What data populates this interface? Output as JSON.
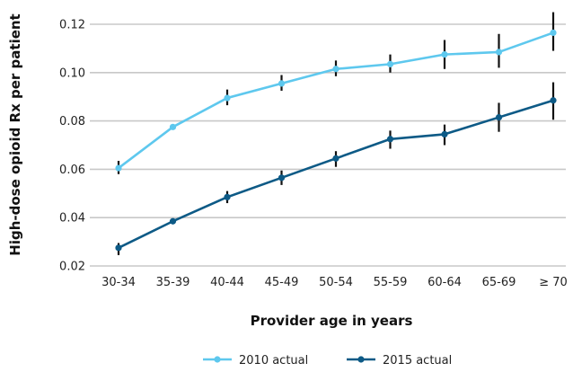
{
  "chart_data": {
    "type": "line",
    "title": "",
    "xlabel": "Provider age in years",
    "ylabel": "High-dose opioid Rx per patient",
    "categories": [
      "30-34",
      "35-39",
      "40-44",
      "45-49",
      "50-54",
      "55-59",
      "60-64",
      "65-69",
      "≥ 70"
    ],
    "y_ticks": [
      "0.02",
      "0.04",
      "0.06",
      "0.08",
      "0.10",
      "0.12"
    ],
    "ylim": [
      0.02,
      0.12
    ],
    "grid": true,
    "legend_position": "bottom",
    "series": [
      {
        "name": "2010 actual",
        "color": "#5ec8ee",
        "values": [
          0.0605,
          0.0775,
          0.0895,
          0.0955,
          0.1015,
          0.1035,
          0.1075,
          0.1085,
          0.1165
        ],
        "error_low": [
          0.058,
          0.077,
          0.0865,
          0.0925,
          0.0985,
          0.1,
          0.1015,
          0.102,
          0.109
        ],
        "error_high": [
          0.0635,
          0.0785,
          0.093,
          0.099,
          0.105,
          0.1075,
          0.1135,
          0.116,
          0.125
        ]
      },
      {
        "name": "2015 actual",
        "color": "#0d5a86",
        "values": [
          0.0275,
          0.0385,
          0.0485,
          0.0565,
          0.0645,
          0.0725,
          0.0745,
          0.0815,
          0.0885
        ],
        "error_low": [
          0.0245,
          0.0375,
          0.046,
          0.0535,
          0.061,
          0.0685,
          0.07,
          0.0755,
          0.0805
        ],
        "error_high": [
          0.0295,
          0.0395,
          0.051,
          0.0595,
          0.0675,
          0.076,
          0.0785,
          0.0875,
          0.096
        ]
      }
    ]
  }
}
